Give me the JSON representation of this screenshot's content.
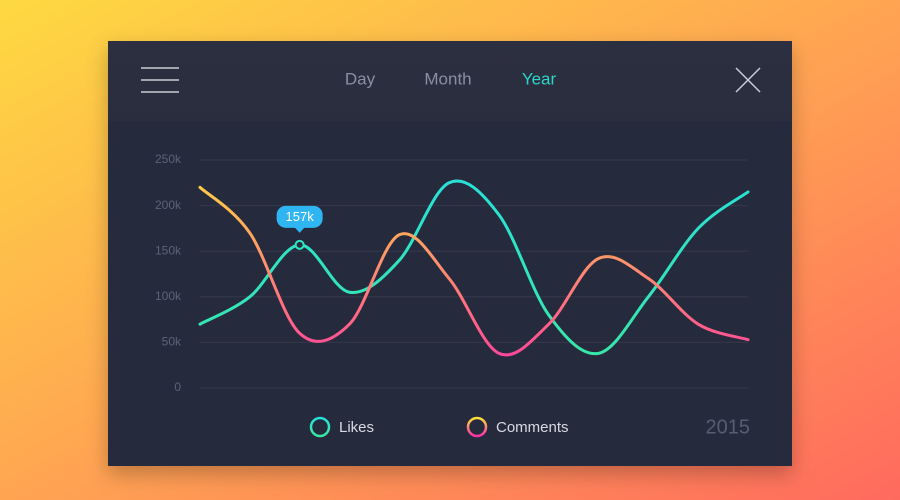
{
  "ui": {
    "tabs": [
      "Day",
      "Month",
      "Year"
    ],
    "active_tab": 2,
    "year": "2015"
  },
  "chart_data": {
    "type": "line",
    "categories": [
      null,
      null,
      null,
      null,
      null,
      null,
      null,
      null,
      null,
      null,
      null,
      null
    ],
    "ylim": [
      0,
      250000
    ],
    "yticks": [
      0,
      {
        "value": 50000,
        "label": "50k"
      },
      {
        "value": 100000,
        "label": "100k"
      },
      {
        "value": 150000,
        "label": "150k"
      },
      {
        "value": 200000,
        "label": "200k"
      },
      {
        "value": 250000,
        "label": "250k"
      }
    ],
    "grid": true,
    "series": [
      {
        "name": "Likes",
        "color": "#2de6c0",
        "gradient": [
          "#27e0dc",
          "#3be8a0"
        ],
        "values": [
          70000,
          100000,
          157000,
          105000,
          140000,
          225000,
          190000,
          80000,
          38000,
          100000,
          175000,
          215000
        ],
        "value_labels": [
          null,
          null,
          "157k",
          null,
          null,
          null,
          null,
          null,
          null,
          null,
          null,
          null
        ]
      },
      {
        "name": "Comments",
        "color": "#ff9f4a",
        "gradient": [
          "#ffe03a",
          "#ff2fa8"
        ],
        "values": [
          220000,
          170000,
          60000,
          70000,
          168000,
          120000,
          38000,
          70000,
          142000,
          120000,
          70000,
          53000
        ]
      }
    ]
  }
}
